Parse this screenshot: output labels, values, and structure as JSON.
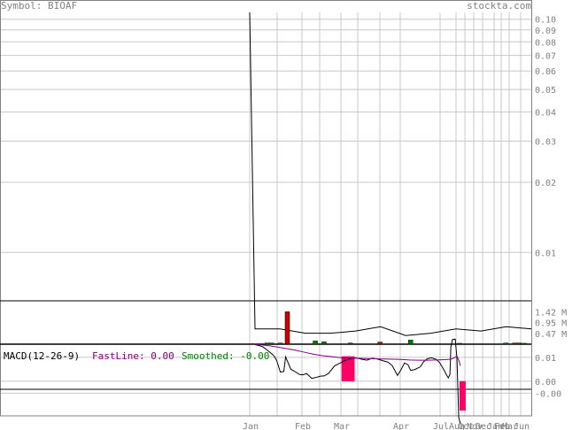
{
  "header": {
    "symbol_label": "Symbol: BIOAF",
    "site": "stockta.com"
  },
  "chart_data": [
    {
      "type": "line",
      "name": "price",
      "scale": "log",
      "y_ticks": [
        "0.10",
        "0.09",
        "0.08",
        "0.07",
        "0.06",
        "0.05",
        "0.04",
        "0.03",
        "0.02",
        "0.01"
      ],
      "y_tick_values": [
        0.1,
        0.09,
        0.08,
        0.07,
        0.06,
        0.05,
        0.04,
        0.03,
        0.02,
        0.01
      ],
      "ylim": [
        0.0062,
        0.107
      ],
      "x_ticks": [
        "Jan",
        "Feb",
        "Mar",
        "Apr",
        "Jul",
        "Aug",
        "Oct",
        "Nov",
        "Dec",
        "Jan",
        "Feb",
        "Mar",
        "Jun"
      ],
      "values": [
        0.107,
        0.0047,
        0.0047,
        0.0045,
        0.0045,
        0.0046,
        0.0048,
        0.0044,
        0.0045,
        0.0047,
        0.0046,
        0.0048,
        0.0047
      ]
    },
    {
      "type": "bar",
      "name": "volume",
      "y_ticks": [
        "1.42 M",
        "0.95 M",
        "0.47 M"
      ],
      "y_tick_values": [
        1.42,
        0.95,
        0.47
      ],
      "ylim": [
        0,
        1.9
      ],
      "bars": [
        {
          "x": 17,
          "value": 0.05,
          "color": "#008000"
        },
        {
          "x": 22,
          "value": 0.05,
          "color": "#008000"
        },
        {
          "x": 32,
          "value": 0.05,
          "color": "#008000"
        },
        {
          "x": 40,
          "value": 1.42,
          "color": "#cc0000"
        },
        {
          "x": 72,
          "value": 0.14,
          "color": "#008000"
        },
        {
          "x": 82,
          "value": 0.1,
          "color": "#008000"
        },
        {
          "x": 112,
          "value": 0.05,
          "color": "#cc0000"
        },
        {
          "x": 146,
          "value": 0.09,
          "color": "#cc0000"
        },
        {
          "x": 181,
          "value": 0.18,
          "color": "#008000"
        },
        {
          "x": 237,
          "value": 0.04,
          "color": "#008000"
        },
        {
          "x": 290,
          "value": 0.05,
          "color": "#008000"
        },
        {
          "x": 300,
          "value": 0.05,
          "color": "#cc0000"
        },
        {
          "x": 305,
          "value": 0.05,
          "color": "#cc0000"
        },
        {
          "x": 311,
          "value": 0.04,
          "color": "#008000"
        }
      ]
    },
    {
      "type": "line",
      "name": "macd",
      "title": "MACD(12-26-9)",
      "fast_label": "FastLine: 0.00",
      "smoothed_label": "Smoothed: -0.00",
      "y_ticks": [
        "0.01",
        "0.00",
        "-0.00"
      ],
      "y_tick_values": [
        0.01,
        0.0,
        -0.005
      ],
      "ylim": [
        -0.0145,
        0.0155
      ],
      "fast_points": [
        [
          0,
          0.0158
        ],
        [
          4,
          0.0152
        ],
        [
          8,
          0.0149
        ],
        [
          12,
          0.0144
        ],
        [
          17,
          0.013
        ],
        [
          22,
          0.0115
        ],
        [
          25,
          0.0105
        ],
        [
          28,
          0.0085
        ],
        [
          32,
          0.0038
        ],
        [
          36,
          0.0041
        ],
        [
          38,
          0.0102
        ],
        [
          44,
          0.005
        ],
        [
          48,
          0.0042
        ],
        [
          54,
          0.0028
        ],
        [
          58,
          0.0027
        ],
        [
          62,
          0.0032
        ],
        [
          68,
          0.0012
        ],
        [
          72,
          0.0015
        ],
        [
          78,
          0.0021
        ],
        [
          82,
          0.0022
        ],
        [
          87,
          0.0032
        ],
        [
          94,
          0.0064
        ],
        [
          102,
          0.0079
        ],
        [
          106,
          0.0087
        ],
        [
          111,
          0.0094
        ],
        [
          118,
          0.0098
        ],
        [
          125,
          0.0092
        ],
        [
          131,
          0.0088
        ],
        [
          137,
          0.0096
        ],
        [
          143,
          0.0093
        ],
        [
          149,
          0.0086
        ],
        [
          155,
          0.008
        ],
        [
          160,
          0.0065
        ],
        [
          163,
          0.0045
        ],
        [
          166,
          0.0024
        ],
        [
          170,
          0.0048
        ],
        [
          174,
          0.0076
        ],
        [
          178,
          0.0069
        ],
        [
          181,
          0.0045
        ],
        [
          186,
          0.0049
        ],
        [
          192,
          0.006
        ],
        [
          196,
          0.0082
        ],
        [
          200,
          0.0094
        ],
        [
          205,
          0.0098
        ],
        [
          210,
          0.0092
        ],
        [
          214,
          0.0079
        ],
        [
          219,
          0.0048
        ],
        [
          222,
          0.0027
        ],
        [
          224,
          0.0014
        ],
        [
          226,
          0.0028
        ],
        [
          227,
          0.0143
        ],
        [
          229,
          0.0175
        ],
        [
          232,
          0.0176
        ],
        [
          234,
          0.0098
        ],
        [
          236,
          -0.015
        ],
        [
          238,
          -0.018
        ]
      ],
      "smoothed_points": [
        [
          0,
          0.0155
        ],
        [
          10,
          0.0152
        ],
        [
          20,
          0.0148
        ],
        [
          30,
          0.0142
        ],
        [
          40,
          0.0136
        ],
        [
          50,
          0.0129
        ],
        [
          60,
          0.0121
        ],
        [
          70,
          0.0113
        ],
        [
          80,
          0.0107
        ],
        [
          90,
          0.0103
        ],
        [
          100,
          0.0099
        ],
        [
          110,
          0.0097
        ],
        [
          120,
          0.0096
        ],
        [
          130,
          0.0095
        ],
        [
          140,
          0.0094
        ],
        [
          150,
          0.0093
        ],
        [
          160,
          0.0092
        ],
        [
          170,
          0.0091
        ],
        [
          180,
          0.0089
        ],
        [
          190,
          0.0088
        ],
        [
          200,
          0.0088
        ],
        [
          210,
          0.0089
        ],
        [
          220,
          0.009
        ],
        [
          227,
          0.0092
        ],
        [
          231,
          0.0098
        ],
        [
          234,
          0.0105
        ],
        [
          236,
          0.0088
        ],
        [
          238,
          0.0065
        ]
      ],
      "histogram": [
        {
          "x": 103,
          "value": 0.0104,
          "color": "#ff0066"
        },
        {
          "x": 104,
          "value": 0.0104,
          "color": "#ff0066"
        },
        {
          "x": 105,
          "value": 0.0104,
          "color": "#ff0066"
        },
        {
          "x": 106,
          "value": 0.0104,
          "color": "#ff0066"
        },
        {
          "x": 107,
          "value": 0.0104,
          "color": "#ff0066"
        },
        {
          "x": 108,
          "value": 0.0104,
          "color": "#ff0066"
        },
        {
          "x": 109,
          "value": 0.0104,
          "color": "#ff0066"
        },
        {
          "x": 110,
          "value": 0.0104,
          "color": "#ff0066"
        },
        {
          "x": 111,
          "value": 0.0104,
          "color": "#ff0066"
        },
        {
          "x": 112,
          "value": 0.0104,
          "color": "#ff0066"
        },
        {
          "x": 113,
          "value": 0.0104,
          "color": "#ff0066"
        },
        {
          "x": 114,
          "value": 0.0104,
          "color": "#ff0066"
        },
        {
          "x": 115,
          "value": 0.0104,
          "color": "#ff0066"
        },
        {
          "x": 116,
          "value": 0.0104,
          "color": "#ff0066"
        },
        {
          "x": 238,
          "value": -0.0123,
          "color": "#ff0066"
        },
        {
          "x": 239,
          "value": -0.0123,
          "color": "#ff0066"
        },
        {
          "x": 240,
          "value": -0.0123,
          "color": "#ff0066"
        },
        {
          "x": 241,
          "value": -0.0123,
          "color": "#ff0066"
        },
        {
          "x": 242,
          "value": -0.0123,
          "color": "#ff0066"
        },
        {
          "x": 243,
          "value": -0.0123,
          "color": "#ff0066"
        }
      ]
    }
  ],
  "colors": {
    "grid": "#c8c8c8",
    "axis_text": "#808080",
    "price_line": "#000000",
    "fast_line": "#000000",
    "smoothed_line": "#800080",
    "fast_label": "#800080",
    "smoothed_label": "#008000",
    "macd_histogram": "#ff0066"
  }
}
